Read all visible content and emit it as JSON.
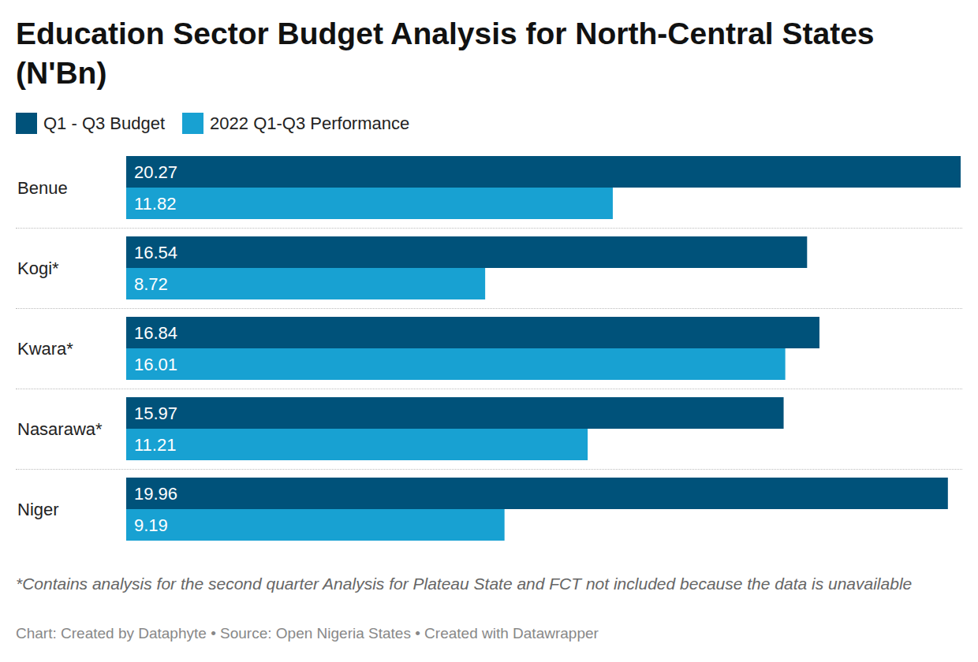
{
  "chart_data": {
    "type": "bar",
    "title": "Education Sector Budget Analysis for North-Central States (N'Bn)",
    "orientation": "horizontal",
    "categories": [
      "Benue",
      "Kogi*",
      "Kwara*",
      "Nasarawa*",
      "Niger"
    ],
    "series": [
      {
        "name": "Q1 - Q3 Budget",
        "color": "#00527a",
        "values": [
          20.27,
          16.54,
          16.84,
          15.97,
          19.96
        ]
      },
      {
        "name": "2022 Q1-Q3 Performance",
        "color": "#18a1d2",
        "values": [
          11.82,
          8.72,
          16.01,
          11.21,
          9.19
        ]
      }
    ],
    "data_labels": true,
    "tick_labels": "y",
    "grid": false,
    "legend": "top-left",
    "note": "*Contains analysis for the second quarter Analysis for Plateau State and FCT not included because the data is unavailable",
    "source": "Chart: Created by Dataphyte • Source: Open Nigeria States • Created with Datawrapper"
  }
}
